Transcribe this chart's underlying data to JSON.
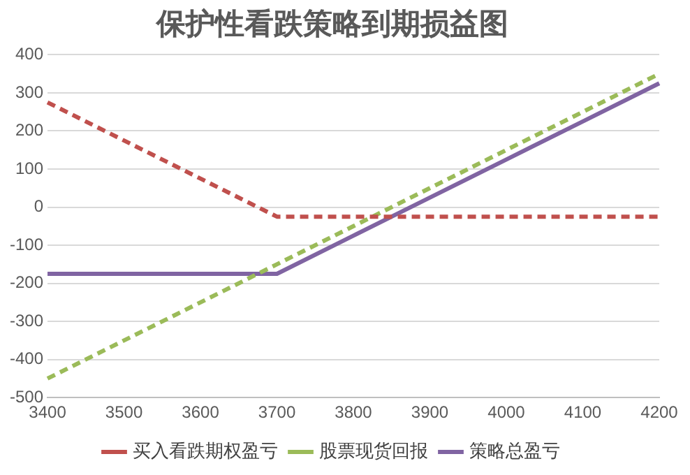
{
  "chart_data": {
    "type": "line",
    "title": "保护性看跌策略到期损益图",
    "categories": [
      "3400",
      "3500",
      "3600",
      "3700",
      "3800",
      "3900",
      "4000",
      "4100",
      "4200"
    ],
    "series": [
      {
        "name": "买入看跌期权盈亏",
        "color": "#c0504d",
        "line_style": "dashed",
        "values": [
          275,
          175,
          75,
          -25,
          -25,
          -25,
          -25,
          -25,
          -25
        ]
      },
      {
        "name": "股票现货回报",
        "color": "#9bbb59",
        "line_style": "dashed",
        "values": [
          -450,
          -350,
          -250,
          -150,
          -50,
          50,
          150,
          250,
          350
        ]
      },
      {
        "name": "策略总盈亏",
        "color": "#8064a2",
        "line_style": "solid",
        "values": [
          -175,
          -175,
          -175,
          -175,
          -75,
          25,
          125,
          225,
          325
        ]
      }
    ],
    "ylim": [
      -500,
      400
    ],
    "yticks": [
      -500,
      -400,
      -300,
      -200,
      -100,
      0,
      100,
      200,
      300,
      400
    ],
    "grid": "y",
    "legend": "bottom",
    "marker": "none"
  }
}
